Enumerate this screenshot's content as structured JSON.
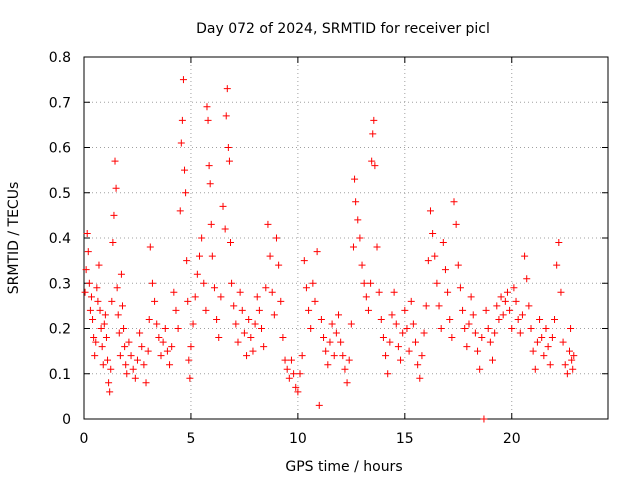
{
  "chart_data": {
    "type": "scatter",
    "title": "Day 072 of 2024, SRMTID for receiver picl",
    "xlabel": "GPS time / hours",
    "ylabel": "SRMTID / TECUs",
    "xlim": [
      0,
      24.5
    ],
    "ylim": [
      0,
      0.8
    ],
    "xticks": [
      0,
      5,
      10,
      15,
      20
    ],
    "yticks": [
      0,
      0.1,
      0.2,
      0.3,
      0.4,
      0.5,
      0.6,
      0.7,
      0.8
    ],
    "ytick_labels": [
      "0",
      "0.1",
      "0.2",
      "0.3",
      "0.4",
      "0.5",
      "0.6",
      "0.7",
      "0.8"
    ],
    "grid": true,
    "marker": "+",
    "marker_color": "#ff0000",
    "series": [
      {
        "name": "SRMTID",
        "points": [
          [
            0.05,
            0.28
          ],
          [
            0.1,
            0.33
          ],
          [
            0.15,
            0.41
          ],
          [
            0.2,
            0.37
          ],
          [
            0.25,
            0.3
          ],
          [
            0.3,
            0.24
          ],
          [
            0.35,
            0.27
          ],
          [
            0.4,
            0.22
          ],
          [
            0.45,
            0.18
          ],
          [
            0.5,
            0.14
          ],
          [
            0.55,
            0.17
          ],
          [
            0.6,
            0.29
          ],
          [
            0.65,
            0.26
          ],
          [
            0.7,
            0.34
          ],
          [
            0.75,
            0.24
          ],
          [
            0.8,
            0.2
          ],
          [
            0.85,
            0.16
          ],
          [
            0.9,
            0.12
          ],
          [
            0.95,
            0.21
          ],
          [
            1.0,
            0.23
          ],
          [
            1.05,
            0.18
          ],
          [
            1.1,
            0.13
          ],
          [
            1.15,
            0.08
          ],
          [
            1.2,
            0.06
          ],
          [
            1.25,
            0.11
          ],
          [
            1.3,
            0.26
          ],
          [
            1.35,
            0.39
          ],
          [
            1.4,
            0.45
          ],
          [
            1.45,
            0.57
          ],
          [
            1.5,
            0.51
          ],
          [
            1.55,
            0.29
          ],
          [
            1.6,
            0.23
          ],
          [
            1.65,
            0.19
          ],
          [
            1.7,
            0.14
          ],
          [
            1.75,
            0.32
          ],
          [
            1.8,
            0.25
          ],
          [
            1.85,
            0.2
          ],
          [
            1.9,
            0.16
          ],
          [
            1.95,
            0.12
          ],
          [
            2.0,
            0.1
          ],
          [
            2.1,
            0.17
          ],
          [
            2.2,
            0.14
          ],
          [
            2.3,
            0.11
          ],
          [
            2.4,
            0.09
          ],
          [
            2.5,
            0.13
          ],
          [
            2.6,
            0.19
          ],
          [
            2.7,
            0.16
          ],
          [
            2.8,
            0.12
          ],
          [
            2.9,
            0.08
          ],
          [
            3.0,
            0.15
          ],
          [
            3.05,
            0.22
          ],
          [
            3.1,
            0.38
          ],
          [
            3.2,
            0.3
          ],
          [
            3.3,
            0.26
          ],
          [
            3.4,
            0.21
          ],
          [
            3.5,
            0.18
          ],
          [
            3.6,
            0.14
          ],
          [
            3.7,
            0.17
          ],
          [
            3.8,
            0.2
          ],
          [
            3.9,
            0.15
          ],
          [
            4.0,
            0.12
          ],
          [
            4.1,
            0.16
          ],
          [
            4.2,
            0.28
          ],
          [
            4.3,
            0.24
          ],
          [
            4.4,
            0.2
          ],
          [
            4.5,
            0.46
          ],
          [
            4.55,
            0.61
          ],
          [
            4.6,
            0.66
          ],
          [
            4.65,
            0.75
          ],
          [
            4.7,
            0.55
          ],
          [
            4.75,
            0.5
          ],
          [
            4.8,
            0.35
          ],
          [
            4.85,
            0.26
          ],
          [
            4.9,
            0.13
          ],
          [
            4.95,
            0.09
          ],
          [
            5.0,
            0.16
          ],
          [
            5.1,
            0.21
          ],
          [
            5.2,
            0.27
          ],
          [
            5.3,
            0.32
          ],
          [
            5.4,
            0.36
          ],
          [
            5.5,
            0.4
          ],
          [
            5.6,
            0.3
          ],
          [
            5.7,
            0.24
          ],
          [
            5.75,
            0.69
          ],
          [
            5.8,
            0.66
          ],
          [
            5.85,
            0.56
          ],
          [
            5.9,
            0.52
          ],
          [
            5.95,
            0.43
          ],
          [
            6.0,
            0.36
          ],
          [
            6.1,
            0.29
          ],
          [
            6.2,
            0.22
          ],
          [
            6.3,
            0.18
          ],
          [
            6.4,
            0.27
          ],
          [
            6.5,
            0.47
          ],
          [
            6.6,
            0.42
          ],
          [
            6.65,
            0.67
          ],
          [
            6.7,
            0.73
          ],
          [
            6.75,
            0.6
          ],
          [
            6.8,
            0.57
          ],
          [
            6.85,
            0.39
          ],
          [
            6.9,
            0.3
          ],
          [
            7.0,
            0.25
          ],
          [
            7.1,
            0.21
          ],
          [
            7.2,
            0.17
          ],
          [
            7.3,
            0.28
          ],
          [
            7.4,
            0.24
          ],
          [
            7.5,
            0.19
          ],
          [
            7.6,
            0.14
          ],
          [
            7.7,
            0.22
          ],
          [
            7.8,
            0.18
          ],
          [
            7.9,
            0.15
          ],
          [
            8.0,
            0.21
          ],
          [
            8.1,
            0.27
          ],
          [
            8.2,
            0.24
          ],
          [
            8.3,
            0.2
          ],
          [
            8.4,
            0.16
          ],
          [
            8.5,
            0.29
          ],
          [
            8.6,
            0.43
          ],
          [
            8.7,
            0.36
          ],
          [
            8.8,
            0.28
          ],
          [
            8.9,
            0.23
          ],
          [
            9.0,
            0.4
          ],
          [
            9.1,
            0.34
          ],
          [
            9.2,
            0.26
          ],
          [
            9.3,
            0.18
          ],
          [
            9.4,
            0.13
          ],
          [
            9.5,
            0.11
          ],
          [
            9.6,
            0.09
          ],
          [
            9.7,
            0.13
          ],
          [
            9.8,
            0.1
          ],
          [
            9.9,
            0.07
          ],
          [
            10.0,
            0.06
          ],
          [
            10.1,
            0.1
          ],
          [
            10.2,
            0.14
          ],
          [
            10.3,
            0.35
          ],
          [
            10.4,
            0.29
          ],
          [
            10.5,
            0.24
          ],
          [
            10.6,
            0.2
          ],
          [
            10.7,
            0.3
          ],
          [
            10.8,
            0.26
          ],
          [
            10.9,
            0.37
          ],
          [
            11.0,
            0.03
          ],
          [
            11.1,
            0.22
          ],
          [
            11.2,
            0.18
          ],
          [
            11.3,
            0.15
          ],
          [
            11.4,
            0.12
          ],
          [
            11.5,
            0.17
          ],
          [
            11.6,
            0.21
          ],
          [
            11.7,
            0.14
          ],
          [
            11.8,
            0.19
          ],
          [
            11.9,
            0.23
          ],
          [
            12.0,
            0.17
          ],
          [
            12.1,
            0.14
          ],
          [
            12.2,
            0.11
          ],
          [
            12.3,
            0.08
          ],
          [
            12.4,
            0.13
          ],
          [
            12.5,
            0.21
          ],
          [
            12.6,
            0.38
          ],
          [
            12.65,
            0.53
          ],
          [
            12.7,
            0.48
          ],
          [
            12.8,
            0.44
          ],
          [
            12.9,
            0.4
          ],
          [
            13.0,
            0.34
          ],
          [
            13.1,
            0.3
          ],
          [
            13.2,
            0.27
          ],
          [
            13.3,
            0.24
          ],
          [
            13.4,
            0.3
          ],
          [
            13.45,
            0.57
          ],
          [
            13.5,
            0.63
          ],
          [
            13.55,
            0.66
          ],
          [
            13.6,
            0.56
          ],
          [
            13.7,
            0.38
          ],
          [
            13.8,
            0.28
          ],
          [
            13.9,
            0.22
          ],
          [
            14.0,
            0.18
          ],
          [
            14.1,
            0.14
          ],
          [
            14.2,
            0.1
          ],
          [
            14.3,
            0.17
          ],
          [
            14.4,
            0.23
          ],
          [
            14.5,
            0.28
          ],
          [
            14.6,
            0.21
          ],
          [
            14.7,
            0.16
          ],
          [
            14.8,
            0.13
          ],
          [
            14.9,
            0.19
          ],
          [
            15.0,
            0.24
          ],
          [
            15.1,
            0.2
          ],
          [
            15.2,
            0.15
          ],
          [
            15.3,
            0.26
          ],
          [
            15.4,
            0.21
          ],
          [
            15.5,
            0.17
          ],
          [
            15.6,
            0.12
          ],
          [
            15.7,
            0.09
          ],
          [
            15.8,
            0.14
          ],
          [
            15.9,
            0.19
          ],
          [
            16.0,
            0.25
          ],
          [
            16.1,
            0.35
          ],
          [
            16.2,
            0.46
          ],
          [
            16.3,
            0.41
          ],
          [
            16.4,
            0.36
          ],
          [
            16.5,
            0.3
          ],
          [
            16.6,
            0.25
          ],
          [
            16.7,
            0.2
          ],
          [
            16.8,
            0.39
          ],
          [
            16.9,
            0.33
          ],
          [
            17.0,
            0.28
          ],
          [
            17.1,
            0.22
          ],
          [
            17.2,
            0.18
          ],
          [
            17.3,
            0.48
          ],
          [
            17.4,
            0.43
          ],
          [
            17.5,
            0.34
          ],
          [
            17.6,
            0.29
          ],
          [
            17.7,
            0.24
          ],
          [
            17.8,
            0.2
          ],
          [
            17.9,
            0.16
          ],
          [
            18.0,
            0.21
          ],
          [
            18.1,
            0.27
          ],
          [
            18.2,
            0.23
          ],
          [
            18.3,
            0.19
          ],
          [
            18.4,
            0.15
          ],
          [
            18.5,
            0.11
          ],
          [
            18.6,
            0.18
          ],
          [
            18.7,
            0.0
          ],
          [
            18.8,
            0.24
          ],
          [
            18.9,
            0.2
          ],
          [
            19.0,
            0.17
          ],
          [
            19.1,
            0.13
          ],
          [
            19.2,
            0.19
          ],
          [
            19.3,
            0.25
          ],
          [
            19.4,
            0.22
          ],
          [
            19.5,
            0.27
          ],
          [
            19.6,
            0.23
          ],
          [
            19.7,
            0.26
          ],
          [
            19.8,
            0.28
          ],
          [
            19.9,
            0.24
          ],
          [
            20.0,
            0.2
          ],
          [
            20.1,
            0.29
          ],
          [
            20.2,
            0.26
          ],
          [
            20.3,
            0.22
          ],
          [
            20.4,
            0.19
          ],
          [
            20.5,
            0.23
          ],
          [
            20.6,
            0.36
          ],
          [
            20.7,
            0.31
          ],
          [
            20.8,
            0.25
          ],
          [
            20.9,
            0.2
          ],
          [
            21.0,
            0.15
          ],
          [
            21.1,
            0.11
          ],
          [
            21.2,
            0.17
          ],
          [
            21.3,
            0.22
          ],
          [
            21.4,
            0.18
          ],
          [
            21.5,
            0.14
          ],
          [
            21.6,
            0.2
          ],
          [
            21.7,
            0.16
          ],
          [
            21.8,
            0.12
          ],
          [
            21.9,
            0.18
          ],
          [
            22.0,
            0.22
          ],
          [
            22.1,
            0.34
          ],
          [
            22.2,
            0.39
          ],
          [
            22.3,
            0.28
          ],
          [
            22.4,
            0.17
          ],
          [
            22.5,
            0.12
          ],
          [
            22.6,
            0.1
          ],
          [
            22.7,
            0.15
          ],
          [
            22.75,
            0.2
          ],
          [
            22.8,
            0.13
          ],
          [
            22.85,
            0.11
          ],
          [
            22.9,
            0.14
          ]
        ]
      }
    ]
  }
}
